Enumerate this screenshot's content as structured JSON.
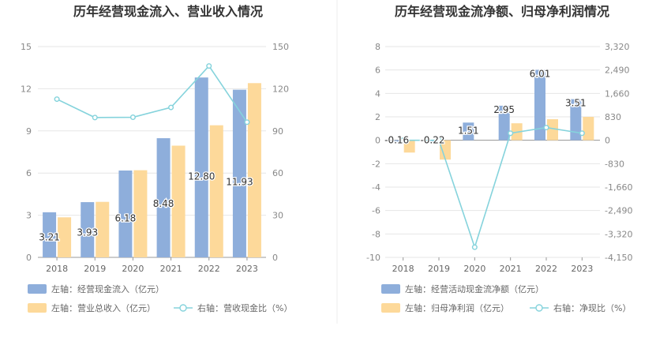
{
  "chart_data": [
    {
      "type": "bar",
      "title": "历年经营现金流入、营业收入情况",
      "categories": [
        "2018",
        "2019",
        "2020",
        "2021",
        "2022",
        "2023"
      ],
      "left_axis": {
        "ticks": [
          "0",
          "3",
          "6",
          "9",
          "12",
          "15"
        ],
        "ylim": [
          0,
          15
        ]
      },
      "right_axis": {
        "ticks": [
          "0",
          "30",
          "60",
          "90",
          "120",
          "150"
        ],
        "ylim": [
          0,
          150
        ]
      },
      "series": [
        {
          "name": "左轴：经营现金流入（亿元）",
          "axis": "left",
          "kind": "bar",
          "color": "#8eaedb",
          "values": [
            3.21,
            3.93,
            6.18,
            8.48,
            12.8,
            11.93
          ],
          "labels": [
            "3.21",
            "3.93",
            "6.18",
            "8.48",
            "12.80",
            "11.93"
          ]
        },
        {
          "name": "左轴：营业总收入（亿元）",
          "axis": "left",
          "kind": "bar",
          "color": "#fdd99a",
          "values": [
            2.85,
            3.95,
            6.2,
            7.95,
            9.4,
            12.4
          ]
        },
        {
          "name": "右轴：营收现金比（%）",
          "axis": "right",
          "kind": "line",
          "color": "#85d3dc",
          "values": [
            112.6,
            99.5,
            99.7,
            106.7,
            136.2,
            96.2
          ]
        }
      ],
      "grid": true,
      "legend": "bottom"
    },
    {
      "type": "bar",
      "title": "历年经营现金流净额、归母净利润情况",
      "categories": [
        "2018",
        "2019",
        "2020",
        "2021",
        "2022",
        "2023"
      ],
      "left_axis": {
        "ticks": [
          "-10",
          "-8",
          "-6",
          "-4",
          "-2",
          "0",
          "2",
          "4",
          "6",
          "8"
        ],
        "ylim": [
          -10,
          8
        ]
      },
      "right_axis": {
        "ticks": [
          "-4,150",
          "-3,320",
          "-2,490",
          "-1,660",
          "-830",
          "0",
          "830",
          "1,660",
          "2,490",
          "3,320"
        ],
        "ylim": [
          -4150,
          3320
        ]
      },
      "series": [
        {
          "name": "左轴：经营活动现金流净额（亿元）",
          "axis": "left",
          "kind": "bar",
          "color": "#8eaedb",
          "values": [
            -0.16,
            -0.22,
            1.51,
            2.95,
            6.01,
            3.51
          ],
          "labels": [
            "-0.16",
            "-0.22",
            "1.51",
            "2.95",
            "6.01",
            "3.51"
          ]
        },
        {
          "name": "左轴：归母净利润（亿元）",
          "axis": "left",
          "kind": "bar",
          "color": "#fdd99a",
          "values": [
            -1.05,
            -1.65,
            0,
            1.45,
            1.8,
            2.0
          ]
        },
        {
          "name": "右轴：净现比（%）",
          "axis": "right",
          "kind": "line",
          "color": "#85d3dc",
          "values": [
            0,
            0,
            -3790,
            250,
            450,
            250
          ]
        }
      ],
      "grid": true,
      "legend": "bottom"
    }
  ]
}
